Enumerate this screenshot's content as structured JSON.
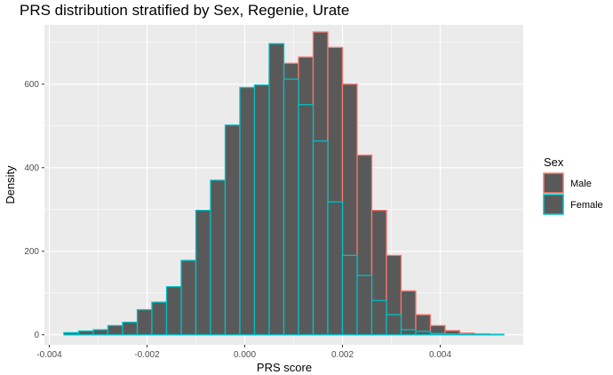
{
  "chart_data": {
    "type": "histogram",
    "title": "PRS distribution stratified by Sex, Regenie, Urate",
    "xlabel": "PRS score",
    "ylabel": "Density",
    "xlim": [
      -0.0041,
      0.0057
    ],
    "ylim": [
      -24,
      742
    ],
    "x_ticks": [
      {
        "value": -0.004,
        "label": "-0.004"
      },
      {
        "value": -0.002,
        "label": "-0.002"
      },
      {
        "value": 0.0,
        "label": "0.000"
      },
      {
        "value": 0.002,
        "label": "0.002"
      },
      {
        "value": 0.004,
        "label": "0.004"
      }
    ],
    "y_ticks": [
      {
        "value": 0,
        "label": "0"
      },
      {
        "value": 200,
        "label": "200"
      },
      {
        "value": 400,
        "label": "400"
      },
      {
        "value": 600,
        "label": "600"
      }
    ],
    "bin_edges": [
      -0.0037,
      -0.0034,
      -0.0031,
      -0.0028,
      -0.0025,
      -0.0022,
      -0.0019,
      -0.0016,
      -0.0013,
      -0.001,
      -0.0007,
      -0.0004,
      -0.0001,
      0.0002,
      0.0005,
      0.0008,
      0.0011,
      0.0014,
      0.0017,
      0.002,
      0.0023,
      0.0026,
      0.0029,
      0.0032,
      0.0035,
      0.0038,
      0.0041,
      0.0044,
      0.0047,
      0.005,
      0.0053
    ],
    "legend": {
      "title": "Sex",
      "position": "right"
    },
    "grid": true,
    "series": [
      {
        "name": "Male",
        "color": "#F8766D",
        "values": [
          4,
          5,
          7,
          12,
          18,
          25,
          45,
          60,
          92,
          150,
          245,
          330,
          460,
          505,
          640,
          650,
          665,
          725,
          688,
          600,
          430,
          298,
          190,
          105,
          48,
          22,
          10,
          4,
          2,
          1
        ]
      },
      {
        "name": "Female",
        "color": "#00BFC4",
        "values": [
          5,
          9,
          12,
          22,
          30,
          60,
          78,
          115,
          178,
          298,
          370,
          502,
          592,
          598,
          697,
          612,
          551,
          464,
          318,
          190,
          142,
          82,
          48,
          12,
          8,
          3,
          2,
          1,
          1,
          1
        ]
      }
    ]
  }
}
